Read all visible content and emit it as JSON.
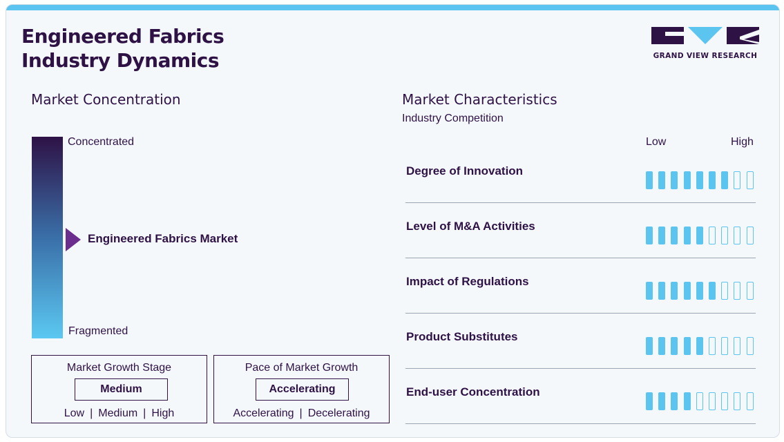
{
  "header": {
    "title_line1": "Engineered Fabrics",
    "title_line2": "Industry Dynamics",
    "logo_text": "GRAND VIEW RESEARCH"
  },
  "market_concentration": {
    "heading": "Market Concentration",
    "top_label": "Concentrated",
    "bottom_label": "Fragmented",
    "marker_label": "Engineered Fabrics Market",
    "marker_level": 0.45
  },
  "growth_stage": {
    "title": "Market Growth Stage",
    "value": "Medium",
    "options": [
      "Low",
      "Medium",
      "High"
    ]
  },
  "growth_pace": {
    "title": "Pace of Market Growth",
    "value": "Accelerating",
    "options": [
      "Accelerating",
      "Decelerating"
    ]
  },
  "characteristics": {
    "heading": "Market Characteristics",
    "subheading": "Industry Competition",
    "scale_low": "Low",
    "scale_high": "High",
    "max_level": 9,
    "items": [
      {
        "label": "Degree of Innovation",
        "level": 7
      },
      {
        "label": "Level of M&A Activities",
        "level": 5
      },
      {
        "label": "Impact of Regulations",
        "level": 6
      },
      {
        "label": "Product Substitutes",
        "level": 5
      },
      {
        "label": "End-user Concentration",
        "level": 4
      }
    ]
  },
  "colors": {
    "primary": "#2e1246",
    "accent": "#5bc4ef",
    "marker": "#6b2d8e",
    "background": "#f4f8fb"
  }
}
